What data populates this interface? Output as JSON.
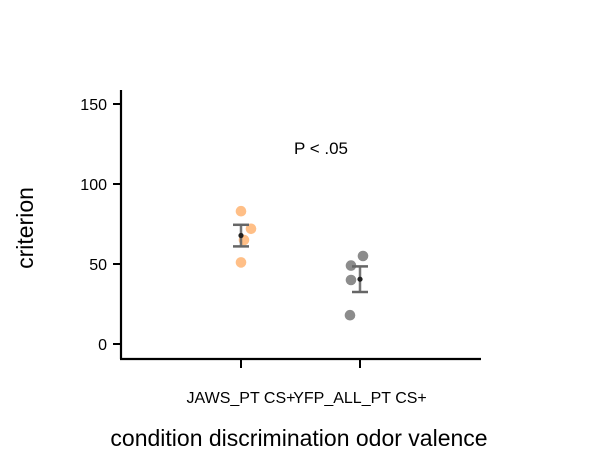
{
  "chart_data": {
    "type": "scatter",
    "title": "",
    "xlabel": "condition  discrimination  odor  valence",
    "ylabel": "criterion",
    "ylim": [
      -10,
      160
    ],
    "yticks": [
      0,
      50,
      100,
      150
    ],
    "categories": [
      "JAWS_PT CS+",
      "YFP_ALL_PT CS+"
    ],
    "annotation": "P < .05",
    "grid": false,
    "series": [
      {
        "category": "JAWS_PT CS+",
        "color": "#ffb87a",
        "points": [
          83,
          72,
          65,
          51
        ],
        "mean": 67.8,
        "error": [
          61,
          74.5
        ]
      },
      {
        "category": "YFP_ALL_PT CS+",
        "color": "#808080",
        "points": [
          55,
          49,
          40,
          18
        ],
        "mean": 40.5,
        "error": [
          32.5,
          48.5
        ]
      }
    ],
    "error_bar_color": "#666666",
    "mean_marker_color": "#222222"
  }
}
